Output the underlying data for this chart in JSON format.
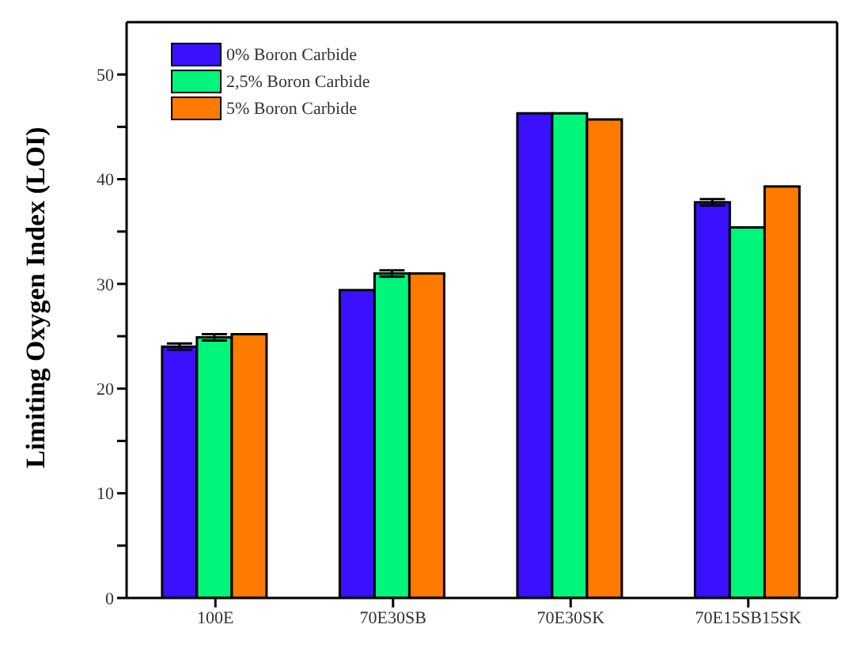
{
  "chart_data": {
    "type": "bar",
    "ylabel": "Limiting Oxygen Index (LOI)",
    "categories": [
      "100E",
      "70E30SB",
      "70E30SK",
      "70E15SB15SK"
    ],
    "series": [
      {
        "name": "0% Boron Carbide",
        "color": "#3a10ff",
        "values": [
          24.0,
          29.4,
          46.3,
          37.8
        ],
        "errors": [
          0.3,
          null,
          null,
          0.3
        ]
      },
      {
        "name": "2,5% Boron Carbide",
        "color": "#00f57a",
        "values": [
          24.9,
          31.0,
          46.3,
          35.4
        ],
        "errors": [
          0.3,
          0.3,
          null,
          null
        ]
      },
      {
        "name": "5% Boron Carbide",
        "color": "#ff7a00",
        "values": [
          25.2,
          31.0,
          45.7,
          39.3
        ]
      }
    ],
    "ylim": [
      0,
      55
    ],
    "yticks": [
      0,
      {
        "value": 5,
        "label": null
      },
      10,
      {
        "value": 15,
        "label": null
      },
      20,
      {
        "value": 25,
        "label": null
      },
      30,
      {
        "value": 35,
        "label": null
      },
      40,
      {
        "value": 45,
        "label": null
      },
      50
    ],
    "grid": false,
    "legend": "top left"
  }
}
